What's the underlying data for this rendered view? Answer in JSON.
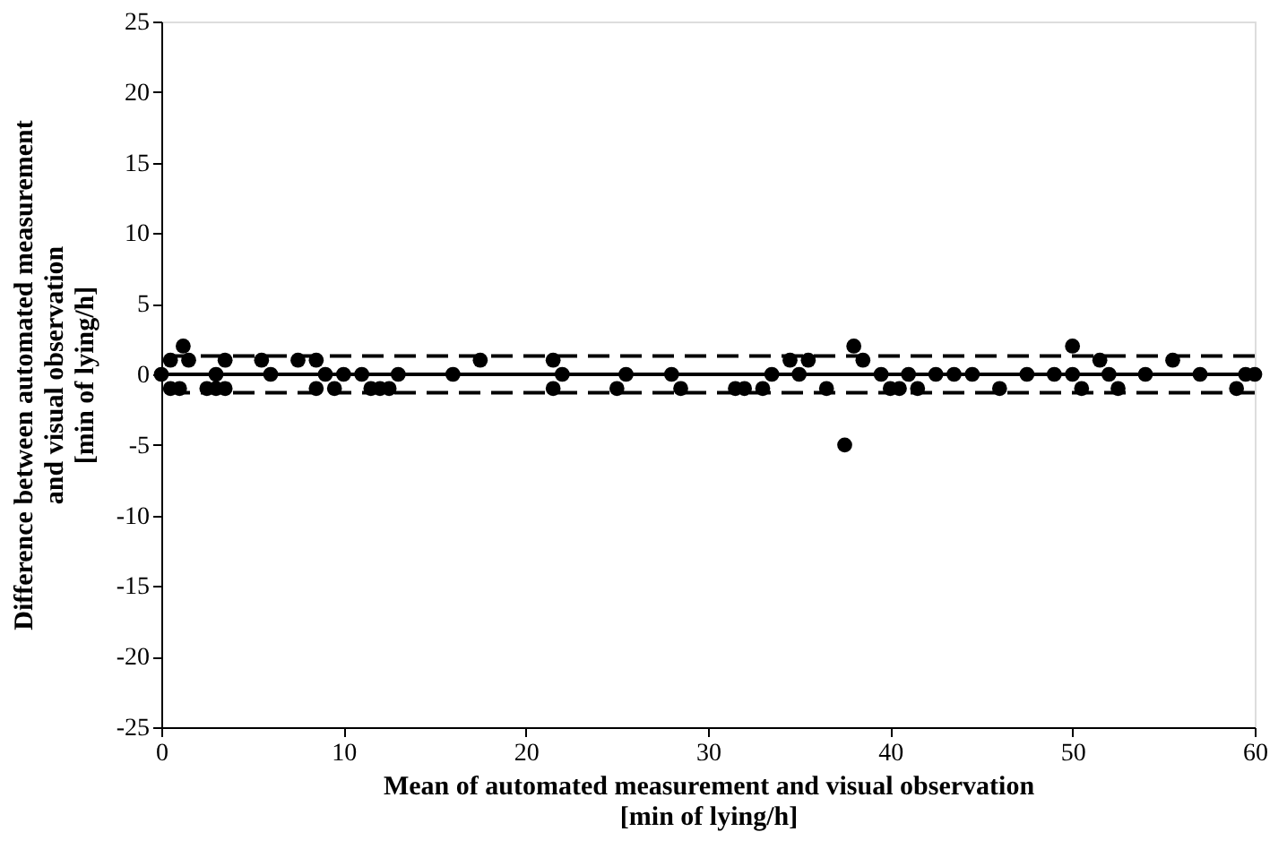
{
  "chart_data": {
    "type": "scatter",
    "xlabel": "Mean of automated measurement and visual observation\n[min of lying/h]",
    "ylabel": "Difference between automated measurement\nand visual observation\n[min of lying/h]",
    "x": [
      0,
      0.5,
      0.5,
      1,
      1.2,
      1.5,
      2.5,
      3,
      3,
      3.5,
      3.5,
      5.5,
      6,
      7.5,
      8.5,
      8.5,
      9,
      9.5,
      10,
      11,
      11.5,
      12,
      12.5,
      13,
      16,
      17.5,
      21.5,
      21.5,
      22,
      25,
      25.5,
      28,
      28.5,
      31.5,
      32,
      33,
      33.5,
      34.5,
      35,
      35.5,
      36.5,
      37.5,
      38,
      38.5,
      39.5,
      40,
      40.5,
      41,
      41.5,
      42.5,
      43.5,
      44.5,
      46,
      47.5,
      49,
      50,
      50,
      50.5,
      51.5,
      52,
      52.5,
      54,
      55.5,
      57,
      59,
      59.5,
      60
    ],
    "series": [
      {
        "color": "#000000",
        "values": [
          0,
          1,
          -1,
          -1,
          2,
          1,
          -1,
          0,
          -1,
          -1,
          1,
          1,
          0,
          1,
          1,
          -1,
          0,
          -1,
          0,
          0,
          -1,
          -1,
          -1,
          0,
          0,
          1,
          1,
          -1,
          0,
          -1,
          0,
          0,
          -1,
          -1,
          -1,
          -1,
          0,
          1,
          0,
          1,
          -1,
          -5,
          2,
          1,
          0,
          -1,
          -1,
          0,
          -1,
          0,
          0,
          0,
          -1,
          0,
          0,
          2,
          0,
          -1,
          1,
          0,
          -1,
          0,
          1,
          0,
          -1,
          0,
          0
        ]
      }
    ],
    "marker": "circle",
    "xlim": [
      0,
      60
    ],
    "xticks": [
      0,
      10,
      20,
      30,
      40,
      50,
      60
    ],
    "ylim": [
      -25,
      25
    ],
    "yticks": [
      -25,
      -20,
      -15,
      -10,
      -5,
      0,
      5,
      10,
      15,
      20,
      25
    ],
    "grid": false,
    "legend": false,
    "ref_lines": [
      {
        "axis": "y",
        "value": 0,
        "color": "#000000",
        "line_style": "solid"
      },
      {
        "axis": "y",
        "value": 1.3,
        "color": "#000000",
        "line_style": "dashed"
      },
      {
        "axis": "y",
        "value": -1.3,
        "color": "#000000",
        "line_style": "dashed"
      }
    ]
  }
}
